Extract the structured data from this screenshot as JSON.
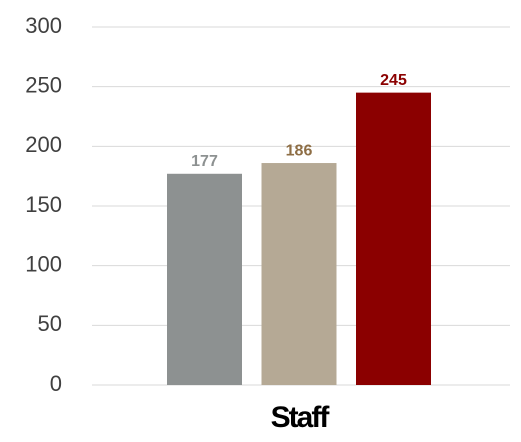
{
  "chart_data": {
    "type": "bar",
    "categories": [
      "Staff"
    ],
    "series": [
      {
        "color": "#8d9191",
        "label_color": "#8d9191",
        "values": [
          177
        ]
      },
      {
        "color": "#b5a995",
        "label_color": "#8e6e45",
        "values": [
          186
        ]
      },
      {
        "color": "#8b0000",
        "label_color": "#8b0000",
        "values": [
          245
        ]
      }
    ],
    "ylim": [
      0,
      300
    ],
    "yticks": [
      0,
      50,
      100,
      150,
      200,
      250,
      300
    ],
    "grid": true
  }
}
